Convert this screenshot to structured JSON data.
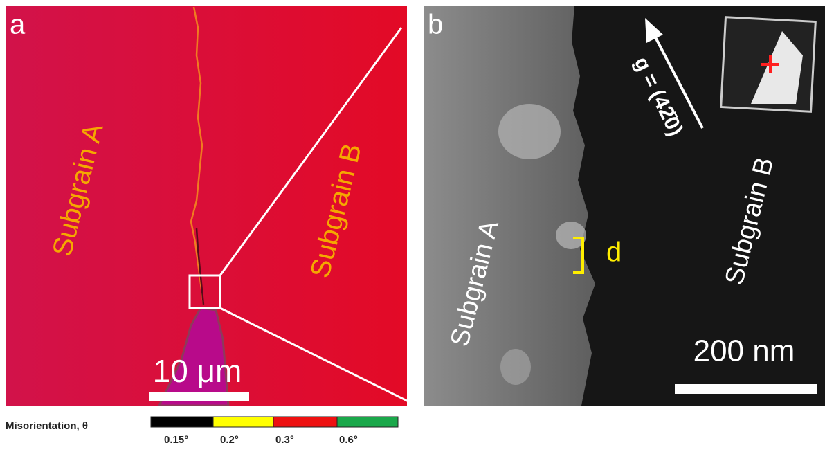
{
  "panel_a": {
    "label": "a",
    "subgrain_a": "Subgrain A",
    "subgrain_b": "Subgrain B",
    "scale_bar": "10 μm"
  },
  "colorbar": {
    "title": "Misorientation, θ",
    "ticks": [
      "0.15°",
      "0.2°",
      "0.3°",
      "0.6°"
    ]
  },
  "panel_b": {
    "label": "b",
    "g_vector": "g = (42̄0)",
    "subgrain_a": "Subgrain A",
    "subgrain_b": "Subgrain B",
    "d": "d",
    "scale_bar": "200 nm"
  }
}
